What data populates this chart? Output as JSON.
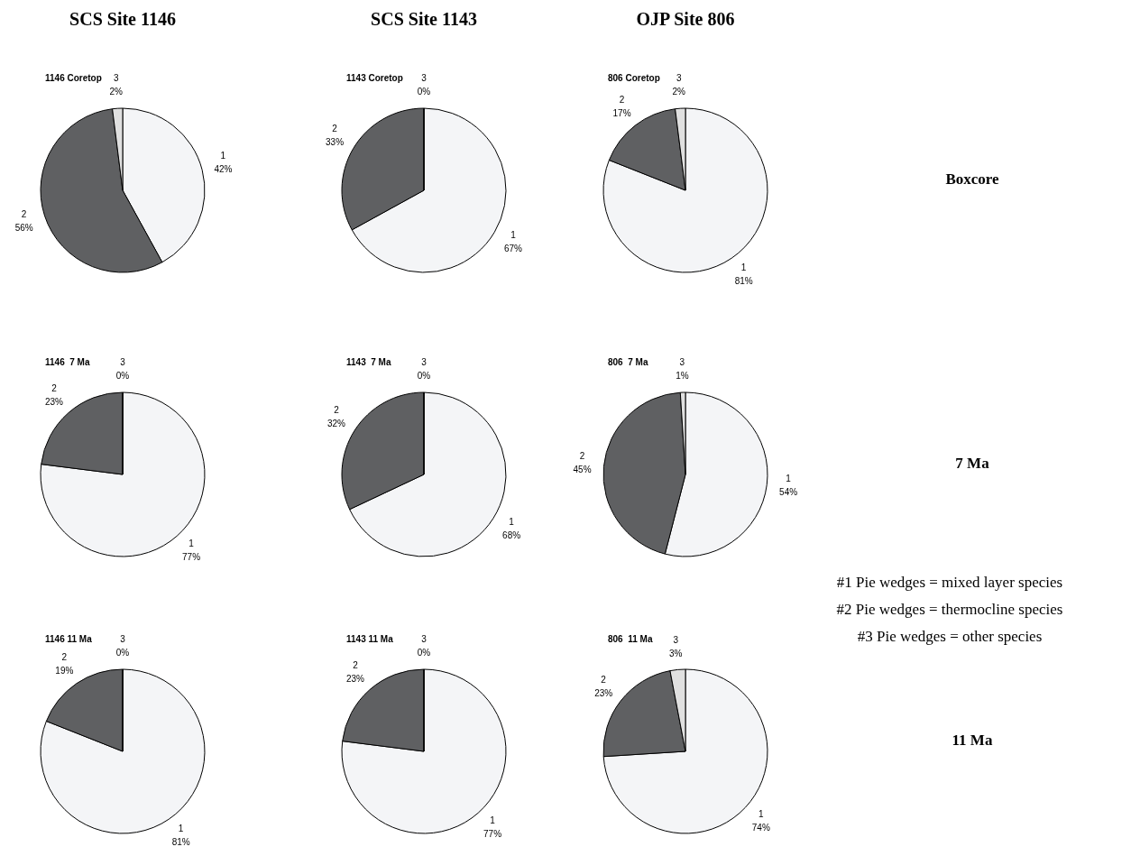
{
  "chart_data": [
    {
      "type": "pie",
      "title": "1146 Coretop",
      "categories": [
        "1",
        "2",
        "3"
      ],
      "values": [
        42,
        56,
        2
      ],
      "value_labels": [
        "42%",
        "56%",
        "2%"
      ],
      "colors": [
        "#f4f5f7",
        "#5f6062",
        "#e0e0e0"
      ]
    },
    {
      "type": "pie",
      "title": "1143 Coretop",
      "categories": [
        "1",
        "2",
        "3"
      ],
      "values": [
        67,
        33,
        0
      ],
      "value_labels": [
        "67%",
        "33%",
        "0%"
      ],
      "colors": [
        "#f4f5f7",
        "#5f6062",
        "#e0e0e0"
      ]
    },
    {
      "type": "pie",
      "title": "806 Coretop",
      "categories": [
        "1",
        "2",
        "3"
      ],
      "values": [
        81,
        17,
        2
      ],
      "value_labels": [
        "81%",
        "17%",
        "2%"
      ],
      "colors": [
        "#f4f5f7",
        "#5f6062",
        "#e0e0e0"
      ]
    },
    {
      "type": "pie",
      "title": "1146  7 Ma",
      "categories": [
        "1",
        "2",
        "3"
      ],
      "values": [
        77,
        23,
        0
      ],
      "value_labels": [
        "77%",
        "23%",
        "0%"
      ],
      "colors": [
        "#f4f5f7",
        "#5f6062",
        "#e0e0e0"
      ]
    },
    {
      "type": "pie",
      "title": "1143  7 Ma",
      "categories": [
        "1",
        "2",
        "3"
      ],
      "values": [
        68,
        32,
        0
      ],
      "value_labels": [
        "68%",
        "32%",
        "0%"
      ],
      "colors": [
        "#f4f5f7",
        "#5f6062",
        "#e0e0e0"
      ]
    },
    {
      "type": "pie",
      "title": "806  7 Ma",
      "categories": [
        "1",
        "2",
        "3"
      ],
      "values": [
        54,
        45,
        1
      ],
      "value_labels": [
        "54%",
        "45%",
        "1%"
      ],
      "colors": [
        "#f4f5f7",
        "#5f6062",
        "#e0e0e0"
      ]
    },
    {
      "type": "pie",
      "title": "1146 11 Ma",
      "categories": [
        "1",
        "2",
        "3"
      ],
      "values": [
        81,
        19,
        0
      ],
      "value_labels": [
        "81%",
        "19%",
        "0%"
      ],
      "colors": [
        "#f4f5f7",
        "#5f6062",
        "#e0e0e0"
      ]
    },
    {
      "type": "pie",
      "title": "1143 11 Ma",
      "categories": [
        "1",
        "2",
        "3"
      ],
      "values": [
        77,
        23,
        0
      ],
      "value_labels": [
        "77%",
        "23%",
        "0%"
      ],
      "colors": [
        "#f4f5f7",
        "#5f6062",
        "#e0e0e0"
      ]
    },
    {
      "type": "pie",
      "title": "806  11 Ma",
      "categories": [
        "1",
        "2",
        "3"
      ],
      "values": [
        74,
        23,
        3
      ],
      "value_labels": [
        "74%",
        "23%",
        "3%"
      ],
      "colors": [
        "#f4f5f7",
        "#5f6062",
        "#e0e0e0"
      ]
    },
    {
      "type": "other",
      "annotations": [
        "SCS Site 1146",
        "SCS Site 1143",
        "OJP Site 806",
        "Boxcore",
        "7 Ma",
        "11 Ma",
        "#1 Pie wedges = mixed layer species",
        "#2 Pie wedges = thermocline species",
        "#3 Pie wedges = other species"
      ]
    }
  ]
}
